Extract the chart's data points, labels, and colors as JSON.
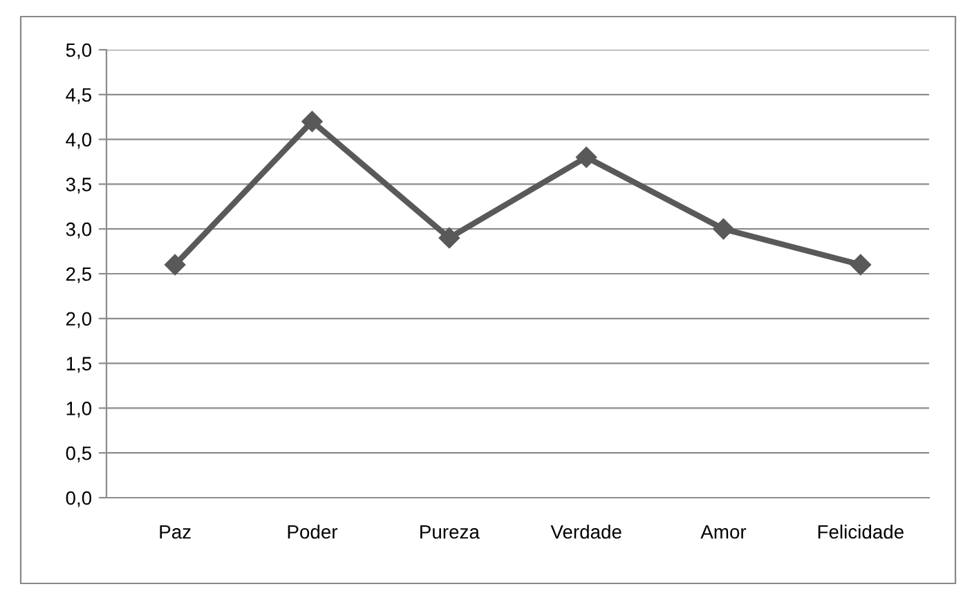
{
  "chart_data": {
    "type": "line",
    "categories": [
      "Paz",
      "Poder",
      "Pureza",
      "Verdade",
      "Amor",
      "Felicidade"
    ],
    "series": [
      {
        "color": "#595959",
        "values": [
          2.6,
          4.2,
          2.9,
          3.8,
          3.0,
          2.6
        ]
      }
    ],
    "ylim": [
      0,
      5
    ],
    "yticks": [
      {
        "value": 0,
        "label": "0,0"
      },
      {
        "value": 0.5,
        "label": "0,5"
      },
      {
        "value": 1,
        "label": "1,0"
      },
      {
        "value": 1.5,
        "label": "1,5"
      },
      {
        "value": 2,
        "label": "2,0"
      },
      {
        "value": 2.5,
        "label": "2,5"
      },
      {
        "value": 3,
        "label": "3,0"
      },
      {
        "value": 3.5,
        "label": "3,5"
      },
      {
        "value": 4,
        "label": "4,0"
      },
      {
        "value": 4.5,
        "label": "4,5"
      },
      {
        "value": 5,
        "label": "5,0"
      }
    ],
    "grid": "y",
    "marker": "diamond",
    "line_style": "solid"
  }
}
